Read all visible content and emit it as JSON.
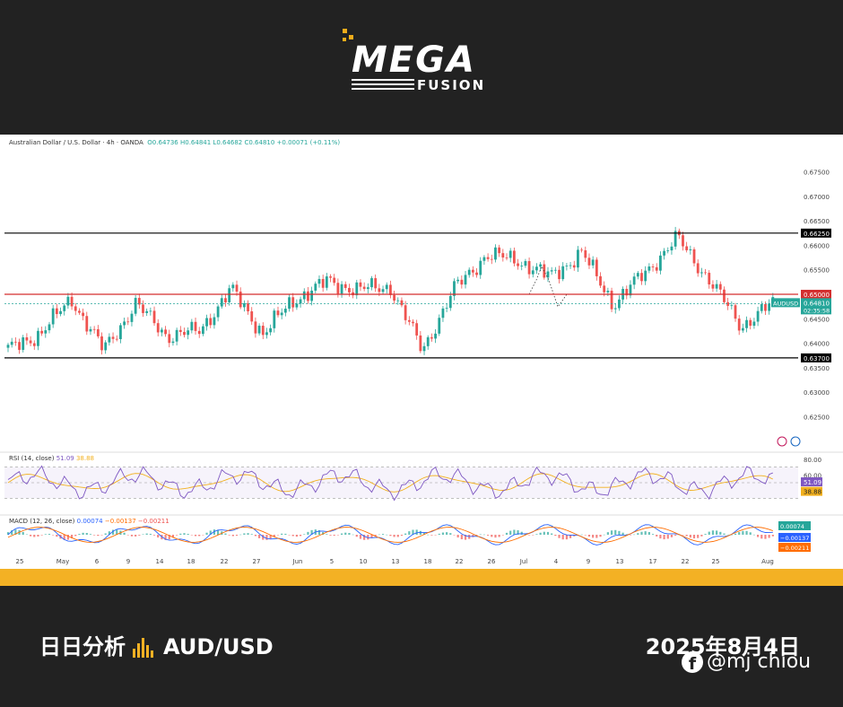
{
  "brand": {
    "logo_text": "MEGA",
    "logo_sub": "FUSION"
  },
  "chart_header": {
    "symbol_line": "Australian Dollar / U.S. Dollar · 4h · OANDA",
    "ohlc": "O0.64736  H0.64841  L0.64682  C0.64810  +0.00071 (+0.11%)"
  },
  "rsi_label": {
    "name": "RSI (14, close)",
    "v1": "51.09",
    "v2": "38.88"
  },
  "macd_label": {
    "name": "MACD (12, 26, close)",
    "v1": "0.00074",
    "v2": "−0.00137",
    "v3": "−0.00211"
  },
  "footer": {
    "left_a": "日日分析",
    "left_b": "AUD/USD",
    "date": "2025年8月4日",
    "credit": "@mj chiou",
    "fb_glyph": "f"
  },
  "colors": {
    "up": "#26a69a",
    "down": "#ef5350",
    "resistance": "#000000",
    "mid_line": "#d32f2f",
    "accent": "#f3b124",
    "rsi": "#7e57c2",
    "rsi_ma": "#f2b01d"
  },
  "chart_data": [
    {
      "type": "line",
      "title": "Australian Dollar / U.S. Dollar · 4h · OANDA",
      "ylim": [
        0.6225,
        0.6775
      ],
      "y_ticks": [
        "0.67500",
        "0.67000",
        "0.66500",
        "0.66000",
        "0.65500",
        "0.65000",
        "0.64500",
        "0.64000",
        "0.63500",
        "0.63000",
        "0.62500"
      ],
      "x_ticks": [
        "25",
        "May",
        "6",
        "9",
        "14",
        "18",
        "22",
        "27",
        "Jun",
        "5",
        "10",
        "13",
        "18",
        "22",
        "26",
        "Jul",
        "4",
        "9",
        "13",
        "17",
        "22",
        "25",
        "Aug"
      ],
      "series": [
        {
          "name": "AUDUSD",
          "x": [
            "Apr 25",
            "May 1",
            "May 6",
            "May 9",
            "May 14",
            "May 18",
            "May 22",
            "May 27",
            "Jun 1",
            "Jun 5",
            "Jun 10",
            "Jun 13",
            "Jun 18",
            "Jun 22",
            "Jun 26",
            "Jul 1",
            "Jul 4",
            "Jul 9",
            "Jul 13",
            "Jul 17",
            "Jul 22",
            "Jul 25",
            "Jul 28",
            "Aug 1",
            "Aug 4"
          ],
          "values": [
            0.6385,
            0.642,
            0.649,
            0.6385,
            0.648,
            0.6415,
            0.6425,
            0.651,
            0.642,
            0.649,
            0.6525,
            0.651,
            0.6515,
            0.6385,
            0.651,
            0.658,
            0.657,
            0.6535,
            0.6585,
            0.648,
            0.6545,
            0.6615,
            0.653,
            0.6435,
            0.6481
          ]
        }
      ],
      "levels": [
        {
          "label": "0.66250",
          "value": 0.6625
        },
        {
          "label": "0.65000",
          "value": 0.65
        },
        {
          "label": "0.63700",
          "value": 0.637
        }
      ],
      "last_price": {
        "label": "AUDUSD",
        "value": "0.64810",
        "countdown": "02:35:58"
      }
    },
    {
      "type": "line",
      "title": "RSI (14, close)",
      "ylim": [
        20,
        80
      ],
      "y_ticks": [
        "80.00",
        "60.00"
      ],
      "series": [
        {
          "name": "RSI",
          "last": 51.09
        },
        {
          "name": "RSI MA",
          "last": 38.88
        }
      ]
    },
    {
      "type": "bar",
      "title": "MACD (12, 26, close)",
      "series": [
        {
          "name": "Histogram",
          "last": 0.00074
        },
        {
          "name": "MACD",
          "last": -0.00137
        },
        {
          "name": "Signal",
          "last": -0.00211
        }
      ]
    }
  ]
}
